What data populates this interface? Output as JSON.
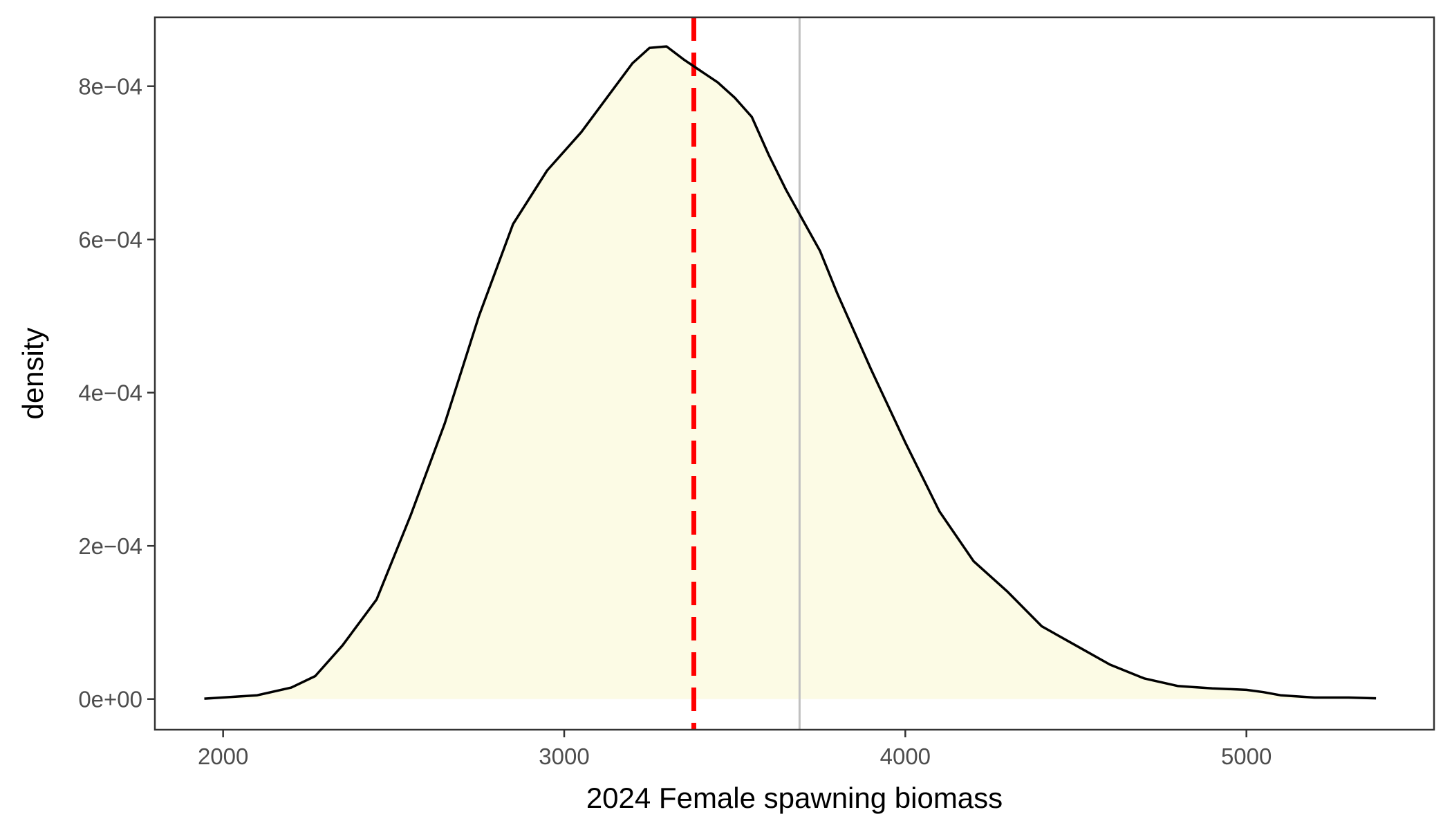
{
  "chart_data": {
    "type": "area",
    "title": "",
    "xlabel": "2024 Female spawning biomass",
    "ylabel": "density",
    "xlim": [
      1800,
      5550
    ],
    "ylim": [
      -4e-05,
      0.00089
    ],
    "x_ticks": [
      2000,
      3000,
      4000,
      5000
    ],
    "x_tick_labels": [
      "2000",
      "3000",
      "4000",
      "5000"
    ],
    "y_ticks": [
      0,
      0.0002,
      0.0004,
      0.0006,
      0.0008
    ],
    "y_tick_labels": [
      "0e+00",
      "2e−04",
      "4e−04",
      "6e−04",
      "8e−04"
    ],
    "grid": false,
    "series": [
      {
        "x": [
          1945,
          2100,
          2200,
          2270,
          2350,
          2450,
          2550,
          2650,
          2750,
          2850,
          2950,
          3050,
          3150,
          3200,
          3250,
          3300,
          3350,
          3400,
          3450,
          3500,
          3550,
          3600,
          3650,
          3700,
          3750,
          3800,
          3900,
          4000,
          4100,
          4200,
          4300,
          4400,
          4500,
          4600,
          4700,
          4800,
          4900,
          5000,
          5050,
          5100,
          5200,
          5300,
          5380
        ],
        "y": [
          5e-07,
          5e-06,
          1.5e-05,
          3e-05,
          7e-05,
          0.00013,
          0.00024,
          0.00036,
          0.0005,
          0.00062,
          0.00069,
          0.00074,
          0.0008,
          0.00083,
          0.00085,
          0.000852,
          0.000835,
          0.00082,
          0.000805,
          0.000785,
          0.00076,
          0.00071,
          0.000665,
          0.000625,
          0.000585,
          0.00053,
          0.00043,
          0.000335,
          0.000245,
          0.00018,
          0.00014,
          9.5e-05,
          7e-05,
          4.5e-05,
          2.7e-05,
          1.7e-05,
          1.4e-05,
          1.2e-05,
          9e-06,
          5e-06,
          2e-06,
          2e-06,
          1e-06
        ],
        "fill_color": "#fcfbe5",
        "line_color": "#000000"
      }
    ],
    "reference_lines": [
      {
        "x": 3380,
        "color": "#ff0000",
        "style": "dashed"
      },
      {
        "x": 3690,
        "color": "#c0c0c0",
        "style": "solid"
      }
    ]
  }
}
